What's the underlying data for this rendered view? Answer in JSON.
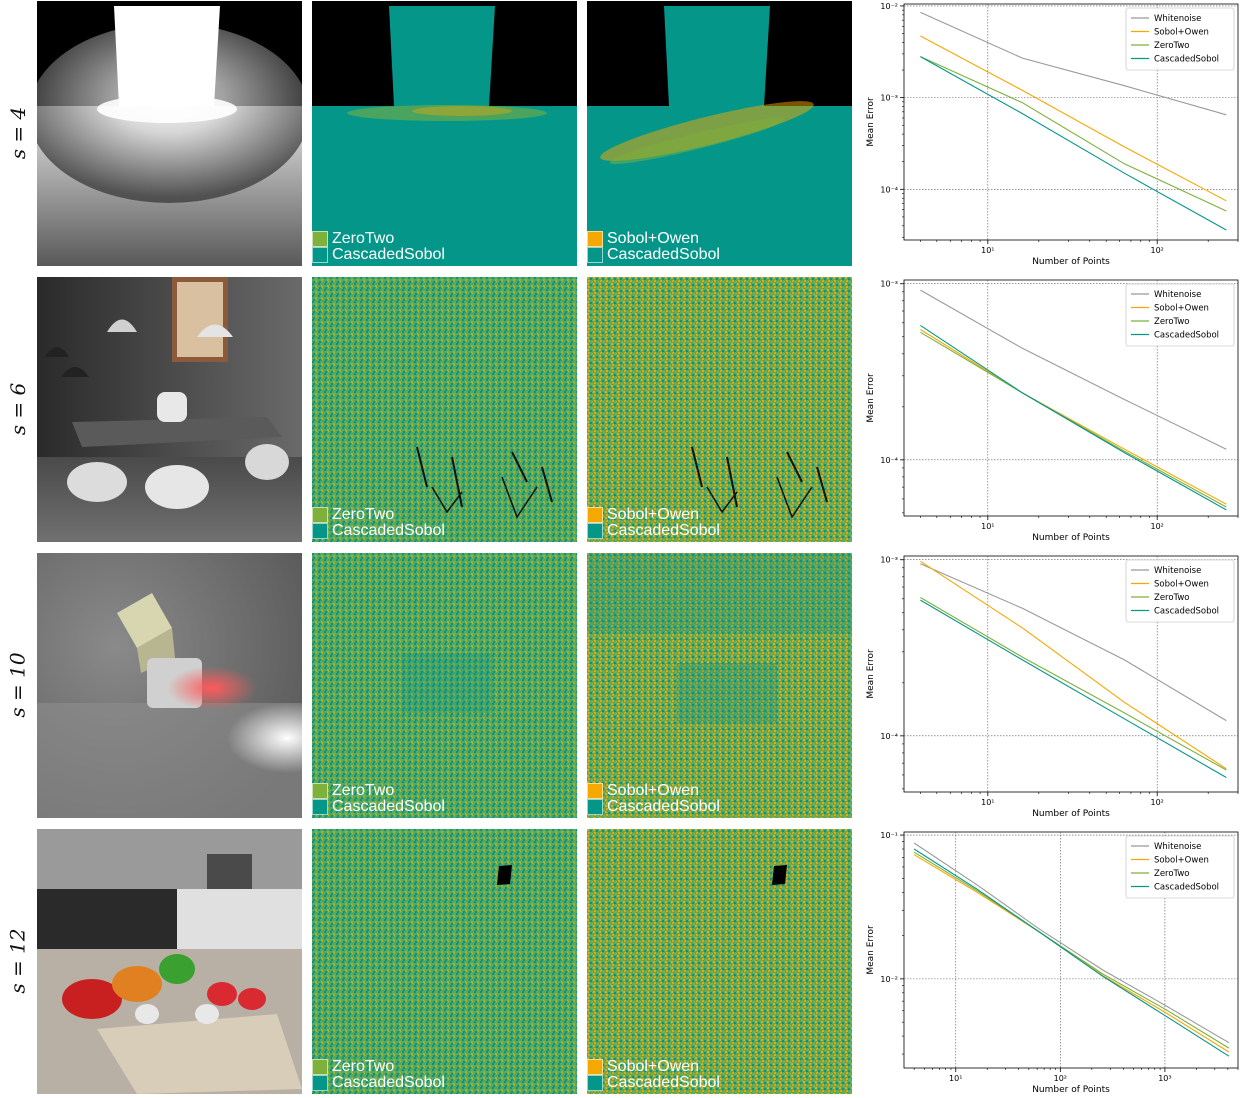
{
  "row_labels": [
    "s = 4",
    "s = 6",
    "s = 10",
    "s = 12"
  ],
  "legend_pairs": {
    "zerotwo": {
      "first": "ZeroTwo",
      "second": "CascadedSobol"
    },
    "sobol": {
      "first": "Sobol+Owen",
      "second": "CascadedSobol"
    }
  },
  "colors": {
    "zerotwo": "#7fb03c",
    "cascaded": "#05968a",
    "sobol_owen": "#f5a800",
    "whitenoise": "#9a9a9a"
  },
  "chart_data": [
    {
      "type": "line",
      "xlabel": "Number of Points",
      "ylabel": "Mean Error",
      "xscale": "log",
      "yscale": "log",
      "xlim": [
        3.2,
        300
      ],
      "ylim": [
        2.8e-05,
        0.0105
      ],
      "xticks": [
        {
          "v": 10,
          "label": "10¹"
        },
        {
          "v": 100,
          "label": "10²"
        }
      ],
      "yticks": [
        {
          "v": 0.0001,
          "label": "10⁻⁴"
        },
        {
          "v": 0.001,
          "label": "10⁻³"
        },
        {
          "v": 0.01,
          "label": "10⁻²"
        }
      ],
      "grid": true,
      "legend_position": "top-right",
      "series": [
        {
          "name": "Whitenoise",
          "color": "#9a9a9a",
          "x": [
            4,
            16,
            64,
            256
          ],
          "y": [
            0.0085,
            0.0027,
            0.00135,
            0.00065
          ]
        },
        {
          "name": "Sobol+Owen",
          "color": "#f5a800",
          "x": [
            4,
            16,
            64,
            256
          ],
          "y": [
            0.0047,
            0.0012,
            0.00029,
            7.5e-05
          ]
        },
        {
          "name": "ZeroTwo",
          "color": "#7fb03c",
          "x": [
            4,
            16,
            64,
            256
          ],
          "y": [
            0.0028,
            0.00088,
            0.00019,
            5.8e-05
          ]
        },
        {
          "name": "CascadedSobol",
          "color": "#05968a",
          "x": [
            4,
            16,
            64,
            256
          ],
          "y": [
            0.0028,
            0.00067,
            0.00015,
            3.6e-05
          ]
        }
      ]
    },
    {
      "type": "line",
      "xlabel": "Number of Points",
      "ylabel": "Mean Error",
      "xscale": "log",
      "yscale": "log",
      "xlim": [
        3.2,
        300
      ],
      "ylim": [
        4.8e-05,
        0.00105
      ],
      "xticks": [
        {
          "v": 10,
          "label": "10¹"
        },
        {
          "v": 100,
          "label": "10²"
        }
      ],
      "yticks": [
        {
          "v": 0.0001,
          "label": "10⁻⁴"
        },
        {
          "v": 0.001,
          "label": "10⁻³"
        }
      ],
      "grid": true,
      "legend_position": "top-right",
      "series": [
        {
          "name": "Whitenoise",
          "color": "#9a9a9a",
          "x": [
            4,
            16,
            64,
            256
          ],
          "y": [
            0.00092,
            0.00043,
            0.00022,
            0.000115
          ]
        },
        {
          "name": "Sobol+Owen",
          "color": "#f5a800",
          "x": [
            4,
            16,
            64,
            256
          ],
          "y": [
            0.00055,
            0.00024,
            0.000115,
            5.6e-05
          ]
        },
        {
          "name": "ZeroTwo",
          "color": "#7fb03c",
          "x": [
            4,
            16,
            64,
            256
          ],
          "y": [
            0.00053,
            0.00024,
            0.000112,
            5.4e-05
          ]
        },
        {
          "name": "CascadedSobol",
          "color": "#05968a",
          "x": [
            4,
            16,
            64,
            256
          ],
          "y": [
            0.00058,
            0.00024,
            0.00011,
            5.2e-05
          ]
        }
      ]
    },
    {
      "type": "line",
      "xlabel": "Number of Points",
      "ylabel": "Mean Error",
      "xscale": "log",
      "yscale": "log",
      "xlim": [
        3.2,
        300
      ],
      "ylim": [
        4.8e-05,
        0.00105
      ],
      "xticks": [
        {
          "v": 10,
          "label": "10¹"
        },
        {
          "v": 100,
          "label": "10²"
        }
      ],
      "yticks": [
        {
          "v": 0.0001,
          "label": "10⁻⁴"
        },
        {
          "v": 0.001,
          "label": "10⁻³"
        }
      ],
      "grid": true,
      "legend_position": "top-right",
      "series": [
        {
          "name": "Whitenoise",
          "color": "#9a9a9a",
          "x": [
            4,
            16,
            64,
            256
          ],
          "y": [
            0.00095,
            0.00053,
            0.00027,
            0.000122
          ]
        },
        {
          "name": "Sobol+Owen",
          "color": "#f5a800",
          "x": [
            4,
            16,
            64,
            256
          ],
          "y": [
            0.00098,
            0.00041,
            0.000155,
            6.5e-05
          ]
        },
        {
          "name": "ZeroTwo",
          "color": "#7fb03c",
          "x": [
            4,
            16,
            64,
            256
          ],
          "y": [
            0.00061,
            0.00028,
            0.000135,
            6.4e-05
          ]
        },
        {
          "name": "CascadedSobol",
          "color": "#05968a",
          "x": [
            4,
            16,
            64,
            256
          ],
          "y": [
            0.00059,
            0.00027,
            0.000125,
            5.8e-05
          ]
        }
      ]
    },
    {
      "type": "line",
      "xlabel": "Number of Points",
      "ylabel": "Mean Error",
      "xscale": "log",
      "yscale": "log",
      "xlim": [
        3.2,
        5000
      ],
      "ylim": [
        0.0024,
        0.105
      ],
      "xticks": [
        {
          "v": 10,
          "label": "10¹"
        },
        {
          "v": 100,
          "label": "10²"
        },
        {
          "v": 1000,
          "label": "10³"
        }
      ],
      "yticks": [
        {
          "v": 0.01,
          "label": "10⁻²"
        },
        {
          "v": 0.1,
          "label": "10⁻¹"
        }
      ],
      "grid": true,
      "legend_position": "top-right",
      "series": [
        {
          "name": "Whitenoise",
          "color": "#9a9a9a",
          "x": [
            4,
            16,
            64,
            256,
            1024,
            4096
          ],
          "y": [
            0.088,
            0.045,
            0.022,
            0.0115,
            0.0065,
            0.0036
          ]
        },
        {
          "name": "Sobol+Owen",
          "color": "#f5a800",
          "x": [
            4,
            16,
            64,
            256,
            1024,
            4096
          ],
          "y": [
            0.073,
            0.04,
            0.021,
            0.0105,
            0.0058,
            0.0031
          ]
        },
        {
          "name": "ZeroTwo",
          "color": "#7fb03c",
          "x": [
            4,
            16,
            64,
            256,
            1024,
            4096
          ],
          "y": [
            0.076,
            0.041,
            0.021,
            0.0108,
            0.0061,
            0.0033
          ]
        },
        {
          "name": "CascadedSobol",
          "color": "#05968a",
          "x": [
            4,
            16,
            64,
            256,
            1024,
            4096
          ],
          "y": [
            0.08,
            0.042,
            0.021,
            0.0104,
            0.0055,
            0.0029
          ]
        }
      ]
    }
  ]
}
